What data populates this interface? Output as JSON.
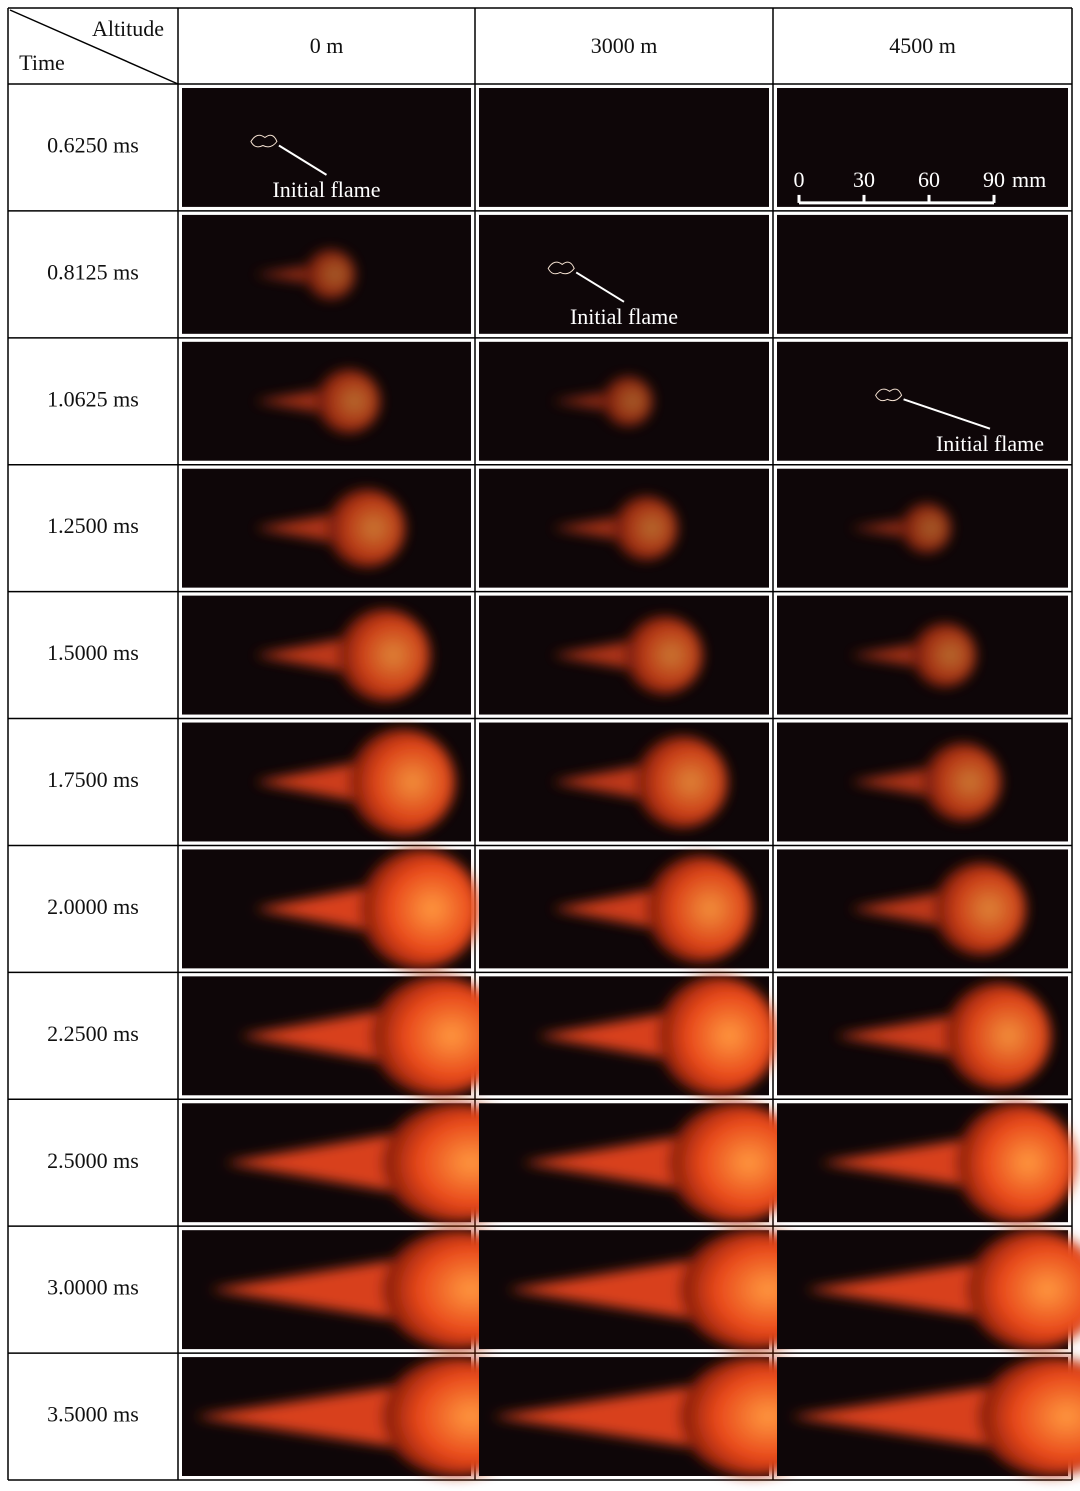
{
  "table": {
    "corner": {
      "column_header": "Altitude",
      "row_header": "Time"
    },
    "columns": [
      "0 m",
      "3000 m",
      "4500 m"
    ],
    "rows": [
      "0.6250 ms",
      "0.8125 ms",
      "1.0625 ms",
      "1.2500 ms",
      "1.5000 ms",
      "1.7500 ms",
      "2.0000 ms",
      "2.2500 ms",
      "2.5000 ms",
      "3.0000 ms",
      "3.5000 ms"
    ]
  },
  "annotations": [
    "Initial flame",
    "Initial flame",
    "Initial flame"
  ],
  "scale_bar": {
    "ticks": [
      0,
      30,
      60,
      90
    ],
    "unit": "mm"
  }
}
